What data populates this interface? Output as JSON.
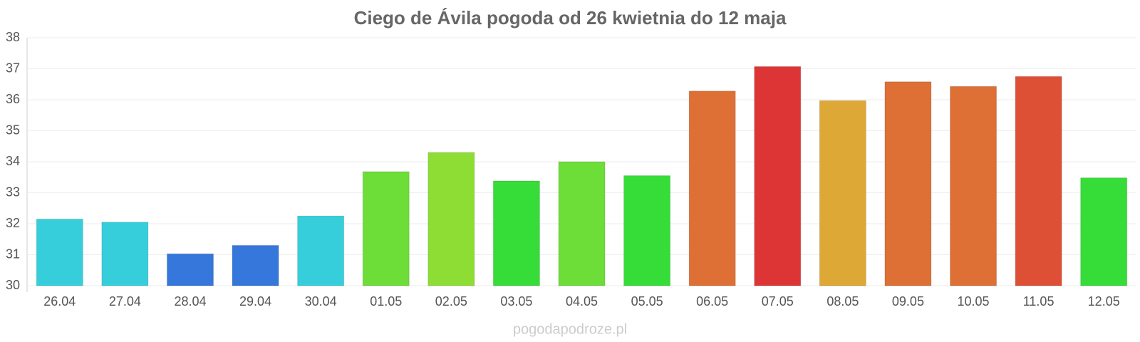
{
  "chart_data": {
    "type": "bar",
    "title": "Ciego de Ávila pogoda od 26 kwietnia do 12 maja",
    "watermark": "pogodapodroze.pl",
    "categories": [
      "26.04",
      "27.04",
      "28.04",
      "29.04",
      "30.04",
      "01.05",
      "02.05",
      "03.05",
      "04.05",
      "05.05",
      "06.05",
      "07.05",
      "08.05",
      "09.05",
      "10.05",
      "11.05",
      "12.05"
    ],
    "values": [
      32.15,
      32.05,
      31.03,
      31.3,
      32.25,
      33.68,
      34.3,
      33.38,
      34.0,
      33.55,
      36.28,
      37.07,
      35.97,
      36.58,
      36.43,
      36.75,
      33.48
    ],
    "colors": [
      "#36cedb",
      "#36cedb",
      "#3577db",
      "#3577db",
      "#36cedb",
      "#6ddd38",
      "#8ddd34",
      "#36dd38",
      "#6ddd38",
      "#36dd38",
      "#de7035",
      "#dd3535",
      "#dda835",
      "#de7035",
      "#de7035",
      "#dd5035",
      "#36dd38"
    ],
    "ylim": [
      30,
      38
    ],
    "yticks": [
      30,
      31,
      32,
      33,
      34,
      35,
      36,
      37,
      38
    ],
    "grid": true
  }
}
